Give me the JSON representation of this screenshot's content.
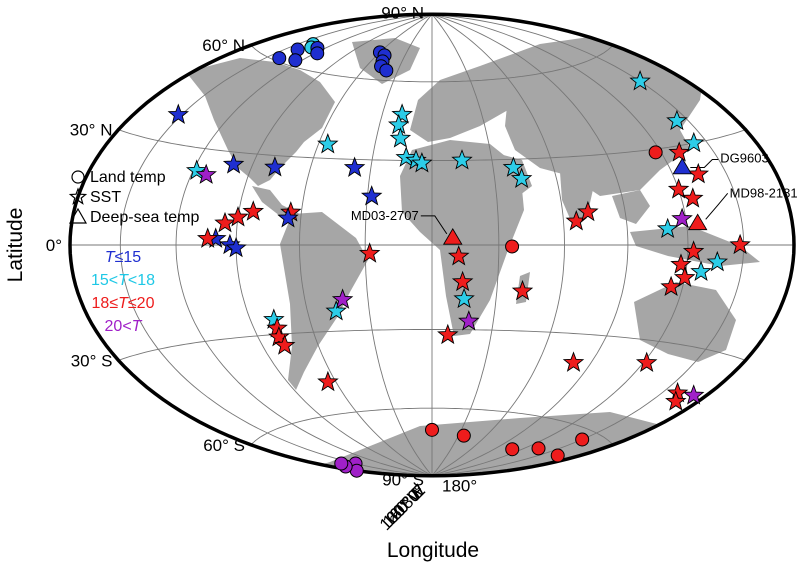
{
  "axes": {
    "xlabel": "Longitude",
    "ylabel": "Latitude",
    "lat_labels": [
      {
        "lat": 90,
        "text": "90° N"
      },
      {
        "lat": 60,
        "text": "60° N"
      },
      {
        "lat": 30,
        "text": "30° N"
      },
      {
        "lat": 0,
        "text": "0°"
      },
      {
        "lat": -30,
        "text": "30° S"
      },
      {
        "lat": -60,
        "text": "60° S"
      },
      {
        "lat": -90,
        "text": "90° S"
      }
    ],
    "lon_labels": [
      {
        "lon": -180,
        "text": "180°"
      },
      {
        "lon": -120,
        "text": "120° W"
      },
      {
        "lon": -60,
        "text": "60° W"
      },
      {
        "lon": 0,
        "text": "0°"
      },
      {
        "lon": 60,
        "text": "60° E"
      },
      {
        "lon": 120,
        "text": "120° E"
      },
      {
        "lon": 180,
        "text": "180°"
      }
    ]
  },
  "legend": {
    "markers": [
      {
        "shape": "circle",
        "label": "Land temp"
      },
      {
        "shape": "star",
        "label": "SST"
      },
      {
        "shape": "triangle",
        "label": "Deep-sea temp"
      }
    ],
    "categories": [
      {
        "key": "blue",
        "color": "#1f2fd0",
        "parts": [
          {
            "t": "T",
            "i": true
          },
          {
            "t": "≤15",
            "i": false
          }
        ]
      },
      {
        "key": "cyan",
        "color": "#1ec8e6",
        "parts": [
          {
            "t": "15<",
            "i": false
          },
          {
            "t": "T",
            "i": true
          },
          {
            "t": "<18",
            "i": false
          }
        ]
      },
      {
        "key": "red",
        "color": "#ee1c1c",
        "parts": [
          {
            "t": "18≤",
            "i": false
          },
          {
            "t": "T",
            "i": true
          },
          {
            "t": "≤20",
            "i": false
          }
        ]
      },
      {
        "key": "purple",
        "color": "#a020c8",
        "parts": [
          {
            "t": "20<",
            "i": false
          },
          {
            "t": "T",
            "i": true
          }
        ]
      }
    ]
  },
  "colors": {
    "blue": "#1f2fd0",
    "cyan": "#2ccde8",
    "red": "#ee1c1c",
    "purple": "#a020c8",
    "land": "#a6a6a6",
    "ocean": "#ffffff",
    "grid": "#777777"
  },
  "callouts": [
    {
      "label": "DG9603",
      "lon": 127,
      "lat": 23.5
    },
    {
      "label": "MD98-2181",
      "lon": 125.8,
      "lat": 6.5
    },
    {
      "label": "MD03-2707",
      "lon": 9.3,
      "lat": 2.5
    }
  ],
  "sites": [
    {
      "type": "circle",
      "cat": "cyan",
      "lon": -138,
      "lat": 68
    },
    {
      "type": "circle",
      "cat": "cyan",
      "lon": -133,
      "lat": 67
    },
    {
      "type": "circle",
      "cat": "blue",
      "lon": -140,
      "lat": 65
    },
    {
      "type": "circle",
      "cat": "blue",
      "lon": -127,
      "lat": 67.5
    },
    {
      "type": "circle",
      "cat": "blue",
      "lon": -118,
      "lat": 66
    },
    {
      "type": "circle",
      "cat": "blue",
      "lon": -125,
      "lat": 62
    },
    {
      "type": "circle",
      "cat": "blue",
      "lon": -140,
      "lat": 61
    },
    {
      "type": "circle",
      "cat": "blue",
      "lon": -60,
      "lat": 71
    },
    {
      "type": "circle",
      "cat": "blue",
      "lon": -52,
      "lat": 70
    },
    {
      "type": "circle",
      "cat": "blue",
      "lon": -49,
      "lat": 67.5
    },
    {
      "type": "circle",
      "cat": "blue",
      "lon": -47,
      "lat": 65.5
    },
    {
      "type": "circle",
      "cat": "blue",
      "lon": -40,
      "lat": 64
    },
    {
      "type": "circle",
      "cat": "red",
      "lon": 117,
      "lat": 29
    },
    {
      "type": "circle",
      "cat": "red",
      "lon": 36,
      "lat": -0.5
    },
    {
      "type": "circle",
      "cat": "red",
      "lon": 0,
      "lat": -69
    },
    {
      "type": "circle",
      "cat": "red",
      "lon": 36,
      "lat": -71
    },
    {
      "type": "circle",
      "cat": "red",
      "lon": 110,
      "lat": -73
    },
    {
      "type": "circle",
      "cat": "red",
      "lon": 133,
      "lat": -70
    },
    {
      "type": "circle",
      "cat": "red",
      "lon": 150,
      "lat": -63
    },
    {
      "type": "circle",
      "cat": "red",
      "lon": 165,
      "lat": -69
    },
    {
      "type": "circle",
      "cat": "purple",
      "lon": -150,
      "lat": -77
    },
    {
      "type": "circle",
      "cat": "purple",
      "lon": -180,
      "lat": -78
    },
    {
      "type": "circle",
      "cat": "purple",
      "lon": -170,
      "lat": -76
    },
    {
      "type": "circle",
      "cat": "purple",
      "lon": -162,
      "lat": -75
    },
    {
      "type": "star",
      "cat": "blue",
      "lon": -152,
      "lat": 38
    },
    {
      "type": "star",
      "cat": "cyan",
      "lon": -118,
      "lat": 23
    },
    {
      "type": "star",
      "cat": "purple",
      "lon": -112,
      "lat": 22
    },
    {
      "type": "star",
      "cat": "blue",
      "lon": -100,
      "lat": 26
    },
    {
      "type": "star",
      "cat": "blue",
      "lon": -78,
      "lat": 26
    },
    {
      "type": "star",
      "cat": "cyan",
      "lon": -55,
      "lat": 35
    },
    {
      "type": "star",
      "cat": "blue",
      "lon": -38,
      "lat": 27
    },
    {
      "type": "star",
      "cat": "blue",
      "lon": -28,
      "lat": 17
    },
    {
      "type": "star",
      "cat": "cyan",
      "lon": -18,
      "lat": 47
    },
    {
      "type": "star",
      "cat": "cyan",
      "lon": -19,
      "lat": 43
    },
    {
      "type": "star",
      "cat": "cyan",
      "lon": -17,
      "lat": 38
    },
    {
      "type": "star",
      "cat": "cyan",
      "lon": -13,
      "lat": 31
    },
    {
      "type": "star",
      "cat": "cyan",
      "lon": -8,
      "lat": 30
    },
    {
      "type": "star",
      "cat": "cyan",
      "lon": -5,
      "lat": 29
    },
    {
      "type": "star",
      "cat": "cyan",
      "lon": 15,
      "lat": 30
    },
    {
      "type": "star",
      "cat": "cyan",
      "lon": 40,
      "lat": 27
    },
    {
      "type": "star",
      "cat": "cyan",
      "lon": 43,
      "lat": 23
    },
    {
      "type": "star",
      "cat": "cyan",
      "lon": 150,
      "lat": 50
    },
    {
      "type": "star",
      "cat": "cyan",
      "lon": 143,
      "lat": 37
    },
    {
      "type": "star",
      "cat": "cyan",
      "lon": 142,
      "lat": 30
    },
    {
      "type": "star",
      "cat": "red",
      "lon": 130,
      "lat": 28
    },
    {
      "type": "star",
      "cat": "red",
      "lon": 134,
      "lat": 21
    },
    {
      "type": "star",
      "cat": "red",
      "lon": 120,
      "lat": 17
    },
    {
      "type": "star",
      "cat": "red",
      "lon": 126,
      "lat": 14
    },
    {
      "type": "star",
      "cat": "purple",
      "lon": 118,
      "lat": 8
    },
    {
      "type": "star",
      "cat": "cyan",
      "lon": 110,
      "lat": 5
    },
    {
      "type": "star",
      "cat": "red",
      "lon": 123,
      "lat": -2
    },
    {
      "type": "star",
      "cat": "red",
      "lon": 117,
      "lat": -6
    },
    {
      "type": "star",
      "cat": "red",
      "lon": 120,
      "lat": -10
    },
    {
      "type": "star",
      "cat": "cyan",
      "lon": 128,
      "lat": -8
    },
    {
      "type": "star",
      "cat": "cyan",
      "lon": 136,
      "lat": -5
    },
    {
      "type": "star",
      "cat": "red",
      "lon": 148,
      "lat": 0
    },
    {
      "type": "star",
      "cat": "red",
      "lon": 114,
      "lat": -13
    },
    {
      "type": "star",
      "cat": "red",
      "lon": 122,
      "lat": -37
    },
    {
      "type": "star",
      "cat": "red",
      "lon": 160,
      "lat": -43
    },
    {
      "type": "star",
      "cat": "red",
      "lon": 166,
      "lat": -45
    },
    {
      "type": "star",
      "cat": "purple",
      "lon": 172,
      "lat": -42
    },
    {
      "type": "star",
      "cat": "red",
      "lon": 66,
      "lat": 8
    },
    {
      "type": "star",
      "cat": "red",
      "lon": 72,
      "lat": 11
    },
    {
      "type": "star",
      "cat": "red",
      "lon": 80,
      "lat": -40
    },
    {
      "type": "star",
      "cat": "red",
      "lon": 42,
      "lat": -16
    },
    {
      "type": "star",
      "cat": "red",
      "lon": 12,
      "lat": -4
    },
    {
      "type": "star",
      "cat": "red",
      "lon": 14,
      "lat": -13
    },
    {
      "type": "star",
      "cat": "cyan",
      "lon": 15,
      "lat": -19
    },
    {
      "type": "star",
      "cat": "purple",
      "lon": 18,
      "lat": -27
    },
    {
      "type": "star",
      "cat": "red",
      "lon": 8,
      "lat": -32
    },
    {
      "type": "star",
      "cat": "red",
      "lon": -28,
      "lat": -3
    },
    {
      "type": "star",
      "cat": "cyan",
      "lon": -46,
      "lat": -23
    },
    {
      "type": "star",
      "cat": "purple",
      "lon": -42,
      "lat": -19
    },
    {
      "type": "star",
      "cat": "cyan",
      "lon": -78,
      "lat": -25
    },
    {
      "type": "star",
      "cat": "red",
      "lon": -78,
      "lat": -28
    },
    {
      "type": "star",
      "cat": "red",
      "lon": -79,
      "lat": -31
    },
    {
      "type": "star",
      "cat": "red",
      "lon": -78,
      "lat": -34
    },
    {
      "type": "star",
      "cat": "red",
      "lon": -65,
      "lat": -48
    },
    {
      "type": "star",
      "cat": "blue",
      "lon": -100,
      "lat": 2
    },
    {
      "type": "star",
      "cat": "blue",
      "lon": -93,
      "lat": 0
    },
    {
      "type": "star",
      "cat": "blue",
      "lon": -90,
      "lat": -1
    },
    {
      "type": "star",
      "cat": "red",
      "lon": -104,
      "lat": 2
    },
    {
      "type": "star",
      "cat": "red",
      "lon": -96,
      "lat": 7
    },
    {
      "type": "star",
      "cat": "red",
      "lon": -90,
      "lat": 9
    },
    {
      "type": "star",
      "cat": "red",
      "lon": -83,
      "lat": 11
    },
    {
      "type": "star",
      "cat": "red",
      "lon": -65,
      "lat": 11
    },
    {
      "type": "star",
      "cat": "blue",
      "lon": -66,
      "lat": 9
    },
    {
      "type": "triangle",
      "cat": "red",
      "lon": 9.3,
      "lat": 2.5
    },
    {
      "type": "triangle",
      "cat": "red",
      "lon": 125.8,
      "lat": 6.5
    },
    {
      "type": "triangle",
      "cat": "blue",
      "lon": 127,
      "lat": 23.5
    }
  ]
}
